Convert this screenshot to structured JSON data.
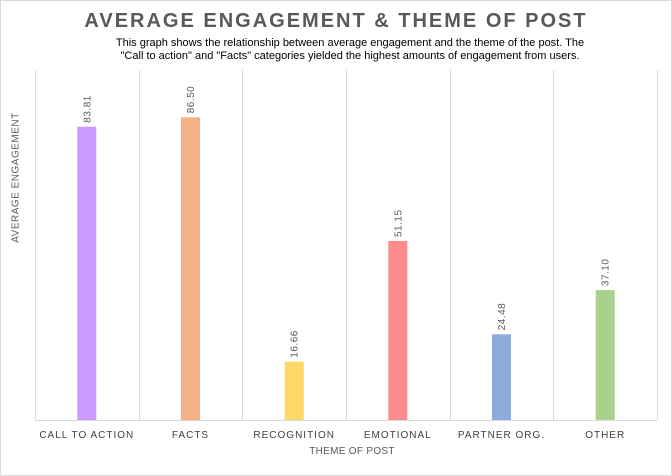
{
  "chart_data": {
    "type": "bar",
    "title": "AVERAGE ENGAGEMENT & THEME OF POST",
    "subtitle_lines": [
      "This graph shows the relationship between average engagement and the theme of the post. The",
      "\"Call to action\" and \"Facts\" categories yielded the highest amounts of engagement from users."
    ],
    "xlabel": "THEME OF POST",
    "ylabel": "AVERAGE ENGAGEMENT",
    "categories": [
      "CALL TO ACTION",
      "FACTS",
      "RECOGNITION",
      "EMOTIONAL",
      "PARTNER ORG.",
      "OTHER"
    ],
    "values": [
      83.81,
      86.5,
      16.66,
      51.15,
      24.48,
      37.1
    ],
    "value_labels": [
      "83.81",
      "86.50",
      "16.66",
      "51.15",
      "24.48",
      "37.10"
    ],
    "colors": [
      "#cc99ff",
      "#f4b183",
      "#ffd966",
      "#ff8c8c",
      "#8faadc",
      "#a9d18e"
    ],
    "ylim": [
      0,
      100
    ],
    "grid": "vertical separators between categories",
    "legend": "none"
  }
}
